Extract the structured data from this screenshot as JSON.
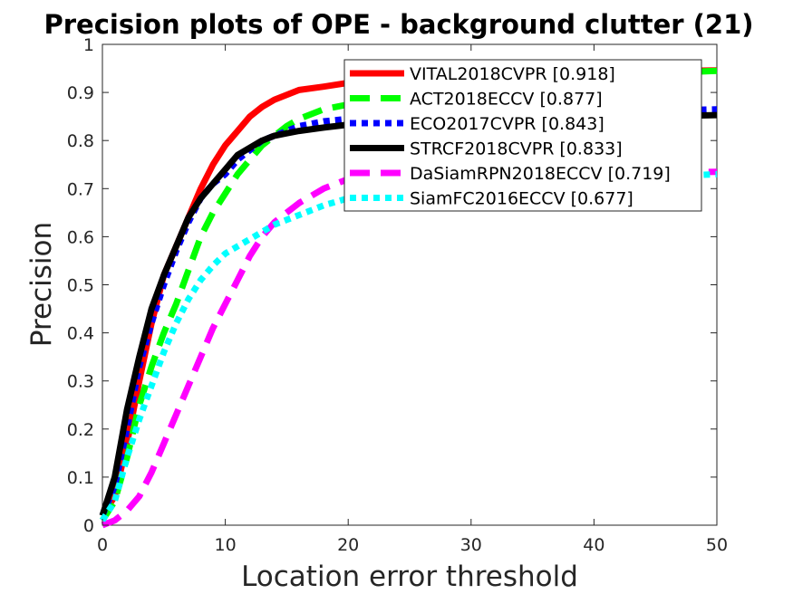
{
  "chart_data": {
    "type": "line",
    "title": "Precision plots of OPE - background clutter (21)",
    "xlabel": "Location error threshold",
    "ylabel": "Precision",
    "xlim": [
      0,
      50
    ],
    "ylim": [
      0,
      1
    ],
    "xticks": [
      "0",
      "10",
      "20",
      "30",
      "40",
      "50"
    ],
    "yticks": [
      "0",
      "0.1",
      "0.2",
      "0.3",
      "0.4",
      "0.5",
      "0.6",
      "0.7",
      "0.8",
      "0.9",
      "1"
    ],
    "grid": false,
    "legend_position": "top-right",
    "series": [
      {
        "name": "VITAL2018CVPR [0.918]",
        "color": "#ff0000",
        "style": "solid",
        "x": [
          0,
          1,
          2,
          3,
          4,
          5,
          6,
          7,
          8,
          9,
          10,
          11,
          12,
          13,
          14,
          15,
          16,
          18,
          20,
          22,
          25,
          30,
          35,
          40,
          45,
          50
        ],
        "y": [
          0.02,
          0.06,
          0.17,
          0.3,
          0.42,
          0.52,
          0.58,
          0.64,
          0.7,
          0.75,
          0.79,
          0.82,
          0.85,
          0.87,
          0.885,
          0.895,
          0.905,
          0.912,
          0.92,
          0.925,
          0.93,
          0.935,
          0.94,
          0.942,
          0.944,
          0.946
        ]
      },
      {
        "name": "ACT2018ECCV [0.877]",
        "color": "#00ff00",
        "style": "dashed",
        "x": [
          0,
          1,
          2,
          3,
          4,
          5,
          6,
          7,
          8,
          9,
          10,
          11,
          12,
          13,
          14,
          15,
          16,
          18,
          20,
          25,
          30,
          35,
          40,
          45,
          50
        ],
        "y": [
          0.01,
          0.05,
          0.14,
          0.25,
          0.33,
          0.4,
          0.46,
          0.53,
          0.6,
          0.65,
          0.69,
          0.73,
          0.76,
          0.79,
          0.81,
          0.83,
          0.845,
          0.865,
          0.875,
          0.9,
          0.915,
          0.925,
          0.935,
          0.94,
          0.945
        ]
      },
      {
        "name": "ECO2017CVPR [0.843]",
        "color": "#0000ff",
        "style": "dotted",
        "x": [
          0,
          1,
          2,
          3,
          4,
          5,
          6,
          7,
          8,
          9,
          10,
          11,
          12,
          13,
          14,
          15,
          16,
          18,
          20,
          25,
          30,
          35,
          40,
          45,
          50
        ],
        "y": [
          0.02,
          0.08,
          0.2,
          0.33,
          0.42,
          0.5,
          0.57,
          0.63,
          0.68,
          0.71,
          0.73,
          0.76,
          0.78,
          0.8,
          0.81,
          0.82,
          0.83,
          0.84,
          0.845,
          0.85,
          0.855,
          0.858,
          0.86,
          0.862,
          0.865
        ]
      },
      {
        "name": "STRCF2018CVPR [0.833]",
        "color": "#000000",
        "style": "solid",
        "x": [
          0,
          1,
          2,
          3,
          4,
          5,
          6,
          7,
          8,
          9,
          10,
          11,
          12,
          13,
          14,
          15,
          16,
          18,
          20,
          25,
          30,
          35,
          40,
          45,
          50
        ],
        "y": [
          0.02,
          0.1,
          0.24,
          0.35,
          0.45,
          0.52,
          0.58,
          0.64,
          0.68,
          0.71,
          0.74,
          0.77,
          0.785,
          0.8,
          0.81,
          0.815,
          0.82,
          0.827,
          0.833,
          0.838,
          0.842,
          0.845,
          0.848,
          0.85,
          0.853
        ]
      },
      {
        "name": "DaSiamRPN2018ECCV [0.719]",
        "color": "#ff00ff",
        "style": "dashed",
        "x": [
          0,
          1,
          2,
          3,
          4,
          5,
          6,
          7,
          8,
          9,
          10,
          11,
          12,
          13,
          14,
          15,
          16,
          18,
          20,
          25,
          30,
          35,
          40,
          45,
          50
        ],
        "y": [
          0.0,
          0.01,
          0.03,
          0.06,
          0.11,
          0.17,
          0.23,
          0.29,
          0.35,
          0.41,
          0.46,
          0.51,
          0.56,
          0.6,
          0.63,
          0.65,
          0.67,
          0.7,
          0.72,
          0.725,
          0.728,
          0.73,
          0.732,
          0.733,
          0.735
        ]
      },
      {
        "name": "SiamFC2016ECCV [0.677]",
        "color": "#00ffff",
        "style": "dotted",
        "x": [
          0,
          1,
          2,
          3,
          4,
          5,
          6,
          7,
          8,
          9,
          10,
          11,
          12,
          13,
          14,
          15,
          16,
          18,
          20,
          25,
          30,
          35,
          40,
          45,
          50
        ],
        "y": [
          0.01,
          0.05,
          0.14,
          0.22,
          0.29,
          0.36,
          0.42,
          0.47,
          0.51,
          0.54,
          0.565,
          0.58,
          0.595,
          0.61,
          0.625,
          0.635,
          0.645,
          0.665,
          0.68,
          0.7,
          0.71,
          0.715,
          0.72,
          0.725,
          0.73
        ]
      }
    ]
  }
}
